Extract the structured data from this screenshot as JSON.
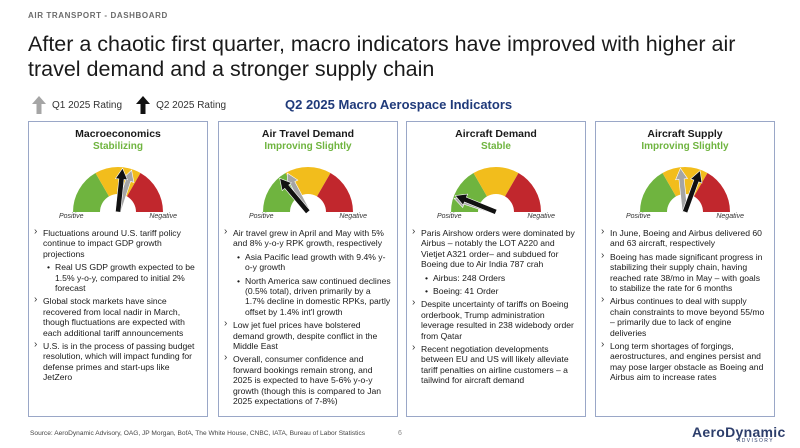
{
  "header": {
    "kicker": "AIR TRANSPORT - DASHBOARD",
    "title": "After a chaotic first quarter, macro indicators have improved with higher air travel demand and a stronger supply chain",
    "subtitle": "Q2 2025 Macro Aerospace Indicators"
  },
  "legend": {
    "q1": "Q1 2025 Rating",
    "q2": "Q2 2025 Rating"
  },
  "colors": {
    "gauge_green": "#6fb43f",
    "gauge_yellow": "#f2bd1c",
    "gauge_red": "#c1272d",
    "q1_arrow": "#a5a5a5",
    "q2_arrow": "#111111",
    "status_text": "#6fb43f",
    "subtitle": "#1f3a7a"
  },
  "gauge_labels": {
    "positive": "Positive",
    "negative": "Negative"
  },
  "cards": [
    {
      "title": "Macroeconomics",
      "status": "Stabilizing",
      "q1_angle": 18,
      "q2_angle": 6,
      "bullets": [
        {
          "text": "Fluctuations around U.S. tariff policy continue to impact GDP growth projections",
          "sub": [
            "Real US GDP growth expected to be 1.5% y-o-y, compared to initial 2% forecast"
          ]
        },
        {
          "text": "Global stock markets have since recovered from local nadir in March, though fluctuations are expected with each additional tariff announcements",
          "sub": []
        },
        {
          "text": "U.S. is in the process of passing budget resolution, which will impact funding for defense primes and start-ups like JetZero",
          "sub": []
        }
      ]
    },
    {
      "title": "Air Travel Demand",
      "status": "Improving Slightly",
      "q1_angle": -28,
      "q2_angle": -40,
      "bullets": [
        {
          "text": "Air travel grew in April and May with 5% and 8% y-o-y RPK growth, respectively",
          "sub": [
            "Asia Pacific lead growth with 9.4% y-o-y growth",
            "North America saw continued declines (0.5% total), driven primarily by a 1.7% decline in domestic RPKs, partly offset by 1.4% int'l growth"
          ]
        },
        {
          "text": "Low jet fuel prices have bolstered demand growth, despite conflict in the Middle East",
          "sub": []
        },
        {
          "text": "Overall, consumer confidence and forward bookings remain strong, and 2025 is expected to have 5-6% y-o-y growth (though this is compared to Jan 2025 expectations of 7-8%)",
          "sub": []
        }
      ]
    },
    {
      "title": "Aircraft Demand",
      "status": "Stable",
      "q1_angle": -72,
      "q2_angle": -68,
      "bullets": [
        {
          "text": "Paris Airshow orders were dominated by Airbus – notably the LOT A220 and Vietjet A321 order– and subdued for Boeing due to Air India 787 crah",
          "sub": [
            "Airbus: 248 Orders",
            "Boeing: 41 Order"
          ]
        },
        {
          "text": "Despite uncertainty of tariffs on Boeing orderbook, Trump administration leverage resulted in 238 widebody order from Qatar",
          "sub": []
        },
        {
          "text": "Recent negotiation developments between EU and US will likely alleviate tariff penalties on airline customers – a tailwind for aircraft demand",
          "sub": []
        }
      ]
    },
    {
      "title": "Aircraft Supply",
      "status": "Improving Slightly",
      "q1_angle": -6,
      "q2_angle": 20,
      "bullets": [
        {
          "text": "In June, Boeing and Airbus delivered 60 and 63 aircraft, respectively",
          "sub": []
        },
        {
          "text": "Boeing has made significant progress in stabilizing their supply chain, having reached rate 38/mo in May – with goals to stabilize the rate for 6 months",
          "sub": []
        },
        {
          "text": "Airbus continues to deal with supply chain constraints to move beyond 55/mo – primarily due to lack of engine deliveries",
          "sub": []
        },
        {
          "text": "Long term shortages of forgings, aerostructures, and engines persist and may pose larger obstacle as Boeing and Airbus aim to increase rates",
          "sub": []
        }
      ]
    }
  ],
  "footer": {
    "source": "Source: AeroDynamic Advisory, OAG, JP Morgan, BofA, The White House, CNBC, IATA, Bureau of Labor Statistics",
    "page": "6",
    "logo": "AeroDynamic",
    "logo_sub": "ADVISORY"
  }
}
